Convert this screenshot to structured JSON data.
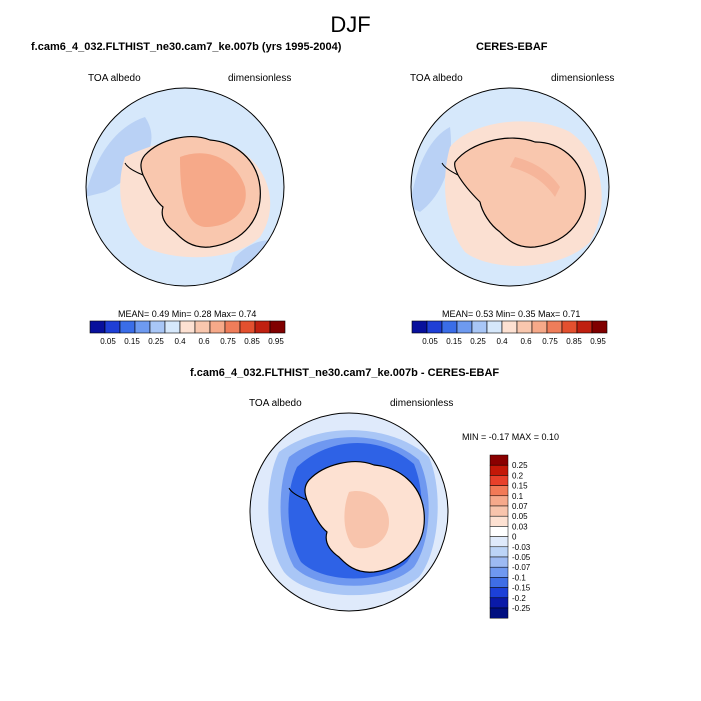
{
  "figure": {
    "title": "DJF"
  },
  "panels": [
    {
      "id": "model",
      "title": "f.cam6_4_032.FLTHIST_ne30.cam7_ke.007b (yrs 1995-2004)",
      "left_label": "TOA albedo",
      "right_label": "dimensionless",
      "stats_text": "MEAN=   0.49  Min=   0.28  Max=   0.74",
      "colorbar_labels": [
        "0.05",
        "0.15",
        "0.25",
        "0.4",
        "0.6",
        "0.75",
        "0.85",
        "0.95"
      ],
      "colors": {
        "ocean": "#d6e8fb",
        "ocean_low": "#b9d1f5",
        "ring": "#fbe0d2",
        "land_high": "#f6a989",
        "land": "#f9c7ae"
      }
    },
    {
      "id": "obs",
      "title": "CERES-EBAF",
      "left_label": "TOA albedo",
      "right_label": "dimensionless",
      "stats_text": "MEAN=   0.53  Min=   0.35  Max=   0.71",
      "colorbar_labels": [
        "0.05",
        "0.15",
        "0.25",
        "0.4",
        "0.6",
        "0.75",
        "0.85",
        "0.95"
      ],
      "colors": {
        "ocean": "#d6e8fb",
        "ocean_low": "#b9d1f5",
        "ring": "#fbe0d2",
        "land_high": "#f6b59a",
        "land": "#f9c7ae"
      }
    }
  ],
  "diff_panel": {
    "title": "f.cam6_4_032.FLTHIST_ne30.cam7_ke.007b - CERES-EBAF",
    "left_label": "TOA albedo",
    "right_label": "dimensionless",
    "minmax_text": "MIN = -0.17 MAX =   0.10",
    "colorbar_labels": [
      "0.25",
      "0.2",
      "0.15",
      "0.1",
      "0.07",
      "0.05",
      "0.03",
      "0",
      "-0.03",
      "-0.05",
      "-0.07",
      "-0.1",
      "-0.15",
      "-0.2",
      "-0.25"
    ],
    "colors": {
      "ocean": "#dfeafb",
      "ring_strong": "#2e62e6",
      "ring_mid": "#6f98f0",
      "ring_light": "#a9c6f6",
      "land": "#fde1d2",
      "land_high": "#f8c4ac"
    }
  },
  "colormaps": {
    "seq_colors": [
      "#08109c",
      "#1f3fd6",
      "#3a6de8",
      "#6e9af0",
      "#a8c6f6",
      "#d6e8fb",
      "#fde1d2",
      "#f9c7ae",
      "#f6a989",
      "#ef7d5a",
      "#e3502f",
      "#c02010",
      "#800000"
    ],
    "diff_colors": [
      "#8a0000",
      "#c41808",
      "#e8402a",
      "#f27a57",
      "#f6a98b",
      "#f8c4ac",
      "#fde1d2",
      "#ffffff",
      "#dfeafb",
      "#bcd4f7",
      "#9dbaf3",
      "#6f98f0",
      "#3f6ee6",
      "#1c40d8",
      "#0a1aa8",
      "#000f80"
    ]
  }
}
